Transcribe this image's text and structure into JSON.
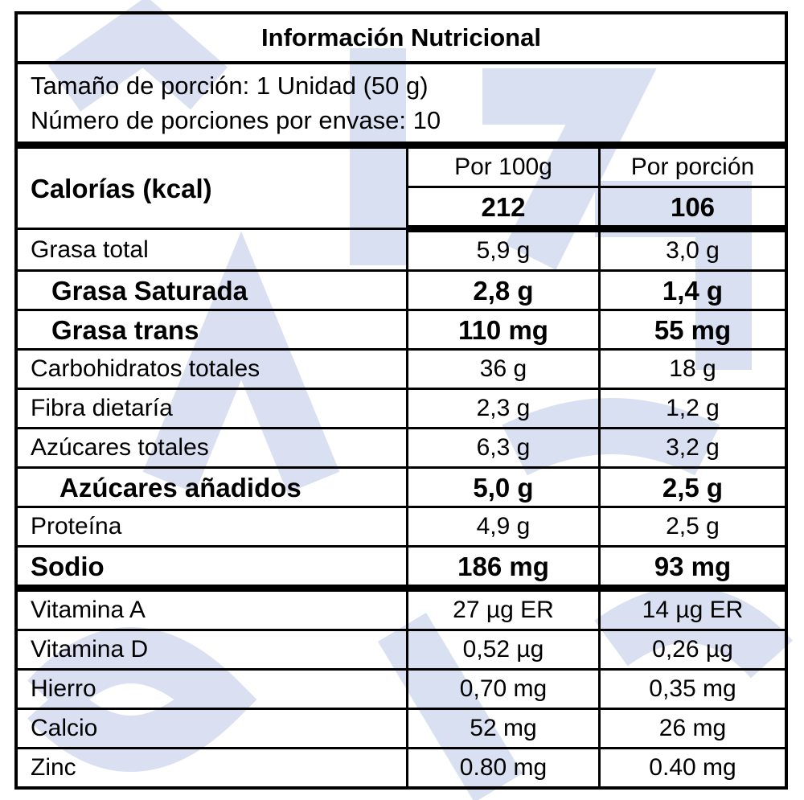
{
  "label": {
    "title": "Información Nutricional",
    "serving_size": "Tamaño de porción: 1 Unidad (50 g)",
    "servings_per_container": "Número de porciones por envase: 10",
    "calories_label": "Calorías (kcal)",
    "col_per100": "Por 100g",
    "col_perserving": "Por porción",
    "calories_per100": "212",
    "calories_perserving": "106",
    "rows": [
      {
        "name": "Grasa total",
        "per100": "5,9 g",
        "perserving": "3,0 g"
      },
      {
        "name": "Grasa Saturada",
        "per100": "2,8 g",
        "perserving": "1,4 g"
      },
      {
        "name": "Grasa trans",
        "per100": "110 mg",
        "perserving": "55 mg"
      },
      {
        "name": "Carbohidratos totales",
        "per100": "36 g",
        "perserving": "18 g"
      },
      {
        "name": "Fibra dietaría",
        "per100": "2,3 g",
        "perserving": "1,2 g"
      },
      {
        "name": "Azúcares totales",
        "per100": "6,3 g",
        "perserving": "3,2 g"
      },
      {
        "name": "Azúcares añadidos",
        "per100": "5,0 g",
        "perserving": "2,5 g"
      },
      {
        "name": "Proteína",
        "per100": "4,9 g",
        "perserving": "2,5 g"
      },
      {
        "name": "Sodio",
        "per100": "186 mg",
        "perserving": "93 mg"
      },
      {
        "name": "Vitamina A",
        "per100": "27 µg ER",
        "perserving": "14 µg ER"
      },
      {
        "name": "Vitamina D",
        "per100": "0,52 µg",
        "perserving": "0,26 µg"
      },
      {
        "name": "Hierro",
        "per100": "0,70 mg",
        "perserving": "0,35 mg"
      },
      {
        "name": "Calcio",
        "per100": "52 mg",
        "perserving": "26 mg"
      },
      {
        "name": "Zinc",
        "per100": "0.80 mg",
        "perserving": "0.40 mg"
      }
    ]
  },
  "colors": {
    "watermark": "#cdd6ee",
    "border": "#000000",
    "background": "#ffffff"
  }
}
